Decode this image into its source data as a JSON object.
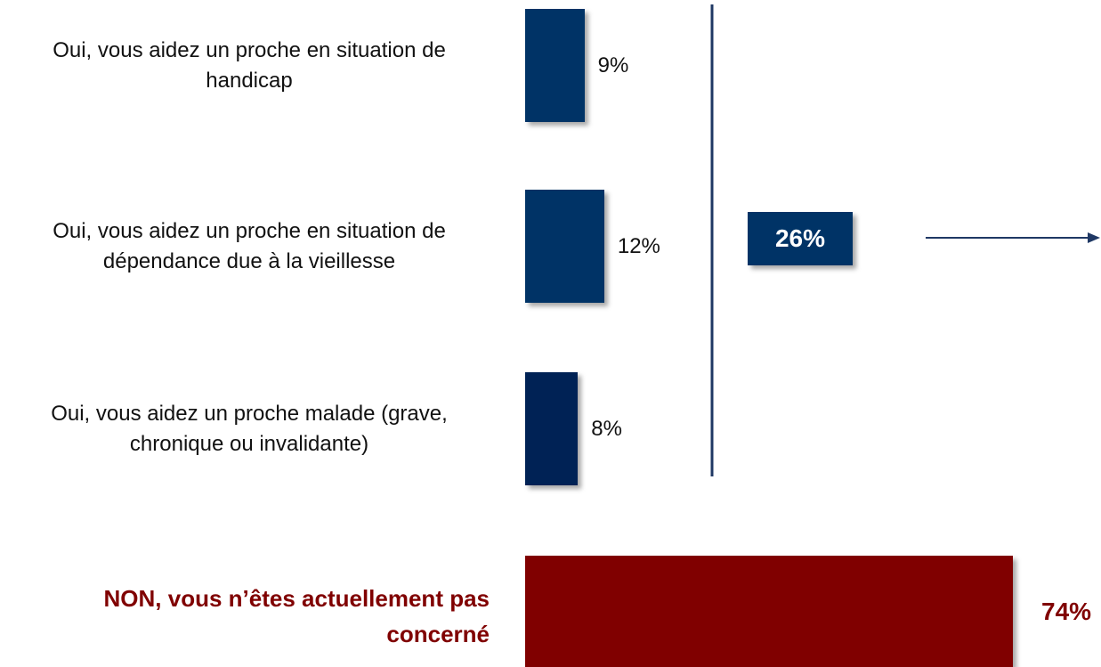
{
  "chart_data": {
    "type": "hbar",
    "categories": [
      "Oui, vous aidez un proche en situation de handicap",
      "Oui, vous aidez un proche en situation de dépendance due à la vieillesse",
      "Oui, vous aidez un proche malade (grave, chronique ou invalidante)",
      "NON, vous n’êtes actuellement pas concerné"
    ],
    "values": [
      9,
      12,
      8,
      74
    ],
    "value_labels": [
      "9%",
      "12%",
      "8%",
      "74%"
    ],
    "colors": [
      "#003366",
      "#003366",
      "#002255",
      "#800000"
    ],
    "highlight": 3,
    "annotation": {
      "value": 26,
      "label": "26%",
      "color": "#003366"
    }
  }
}
